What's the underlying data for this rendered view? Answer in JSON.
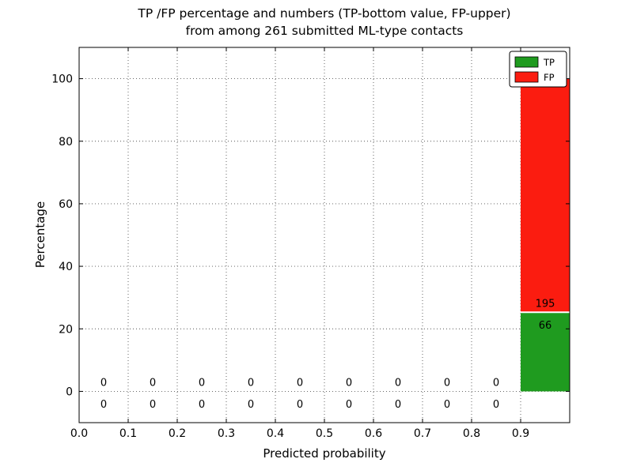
{
  "figure": {
    "title_line1": "TP /FP percentage and numbers (TP-bottom value, FP-upper)",
    "title_line2": "from among 261 submitted ML-type contacts"
  },
  "chart_data": {
    "type": "bar",
    "stacked": true,
    "title": "TP /FP percentage and numbers (TP-bottom value, FP-upper)\nfrom among 261 submitted ML-type contacts",
    "xlabel": "Predicted probability",
    "ylabel": "Percentage",
    "total_contacts": 261,
    "xlim": [
      0.0,
      1.0
    ],
    "ylim": [
      -10,
      110
    ],
    "bin_width": 0.1,
    "bin_starts": [
      0.0,
      0.1,
      0.2,
      0.3,
      0.4,
      0.5,
      0.6,
      0.7,
      0.8,
      0.9
    ],
    "xticks": [
      0.0,
      0.1,
      0.2,
      0.3,
      0.4,
      0.5,
      0.6,
      0.7,
      0.8,
      0.9
    ],
    "xtick_labels": [
      "0.0",
      "0.1",
      "0.2",
      "0.3",
      "0.4",
      "0.5",
      "0.6",
      "0.7",
      "0.8",
      "0.9"
    ],
    "yticks": [
      0,
      20,
      40,
      60,
      80,
      100
    ],
    "ytick_labels": [
      "0",
      "20",
      "40",
      "60",
      "80",
      "100"
    ],
    "grid": true,
    "grid_style": "dotted",
    "legend": {
      "position": "upper right",
      "entries": [
        {
          "label": "TP",
          "color": "#1f9b1f"
        },
        {
          "label": "FP",
          "color": "#fb1c10"
        }
      ]
    },
    "series": [
      {
        "name": "TP",
        "color": "#1f9b1f",
        "counts": [
          0,
          0,
          0,
          0,
          0,
          0,
          0,
          0,
          0,
          66
        ],
        "percent": [
          0,
          0,
          0,
          0,
          0,
          0,
          0,
          0,
          0,
          25.29
        ]
      },
      {
        "name": "FP",
        "color": "#fb1c10",
        "counts": [
          0,
          0,
          0,
          0,
          0,
          0,
          0,
          0,
          0,
          195
        ],
        "percent": [
          0,
          0,
          0,
          0,
          0,
          0,
          0,
          0,
          0,
          74.71
        ]
      }
    ]
  }
}
